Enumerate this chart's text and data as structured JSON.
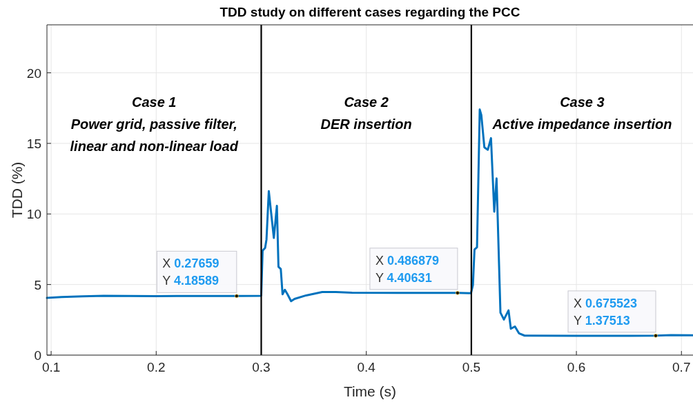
{
  "chart_data": {
    "type": "line",
    "title": "TDD study on different cases regarding the PCC",
    "xlabel": "Time (s)",
    "ylabel": "TDD (%)",
    "xlim": [
      0.096,
      0.711
    ],
    "ylim": [
      0,
      23.4
    ],
    "xticks": [
      0.1,
      0.2,
      0.3,
      0.4,
      0.5,
      0.6,
      0.7
    ],
    "yticks": [
      0,
      5,
      10,
      15,
      20
    ],
    "grid": true,
    "series": [
      {
        "color": "#0072bd",
        "x": [
          0.096,
          0.11,
          0.13,
          0.15,
          0.2,
          0.25,
          0.27659,
          0.2995,
          0.3,
          0.3013,
          0.3037,
          0.305,
          0.3072,
          0.312,
          0.3149,
          0.3164,
          0.3186,
          0.3203,
          0.3225,
          0.325,
          0.3284,
          0.3317,
          0.3427,
          0.358,
          0.371,
          0.3865,
          0.43,
          0.486879,
          0.4997,
          0.5015,
          0.503,
          0.5054,
          0.508,
          0.5095,
          0.5124,
          0.5157,
          0.5187,
          0.5218,
          0.524,
          0.5277,
          0.531,
          0.5354,
          0.5376,
          0.5415,
          0.5453,
          0.5507,
          0.6,
          0.65,
          0.675523,
          0.69,
          0.711
        ],
        "values": [
          4.05,
          4.12,
          4.17,
          4.2,
          4.18,
          4.19,
          4.19,
          4.2,
          4.24,
          7.4,
          7.6,
          8.2,
          11.62,
          8.3,
          10.58,
          6.26,
          6.1,
          4.31,
          4.63,
          4.31,
          3.82,
          3.98,
          4.23,
          4.47,
          4.47,
          4.42,
          4.41,
          4.41,
          4.39,
          4.96,
          7.48,
          7.64,
          17.4,
          17.0,
          14.72,
          14.55,
          15.37,
          10.16,
          12.52,
          3.01,
          2.52,
          3.17,
          1.87,
          2.03,
          1.55,
          1.38,
          1.37,
          1.37,
          1.38,
          1.42,
          1.4
        ]
      }
    ],
    "ref_lines": [
      {
        "axis": "x",
        "value": 0.3,
        "color": "#000000"
      },
      {
        "axis": "x",
        "value": 0.5,
        "color": "#000000"
      }
    ],
    "annotations": [
      "Case 1\nPower grid, passive filter,\nlinear and non-linear load",
      "Case 2\nDER insertion",
      "Case 3\nActive impedance insertion",
      {
        "text": "X 0.27659\nY 4.18589",
        "x": 0.27659,
        "y": 4.18589
      },
      {
        "text": "X 0.486879\nY 4.40631",
        "x": 0.486879,
        "y": 4.40631
      },
      {
        "text": "X 0.675523\nY 1.37513",
        "x": 0.675523,
        "y": 1.37513
      }
    ]
  }
}
